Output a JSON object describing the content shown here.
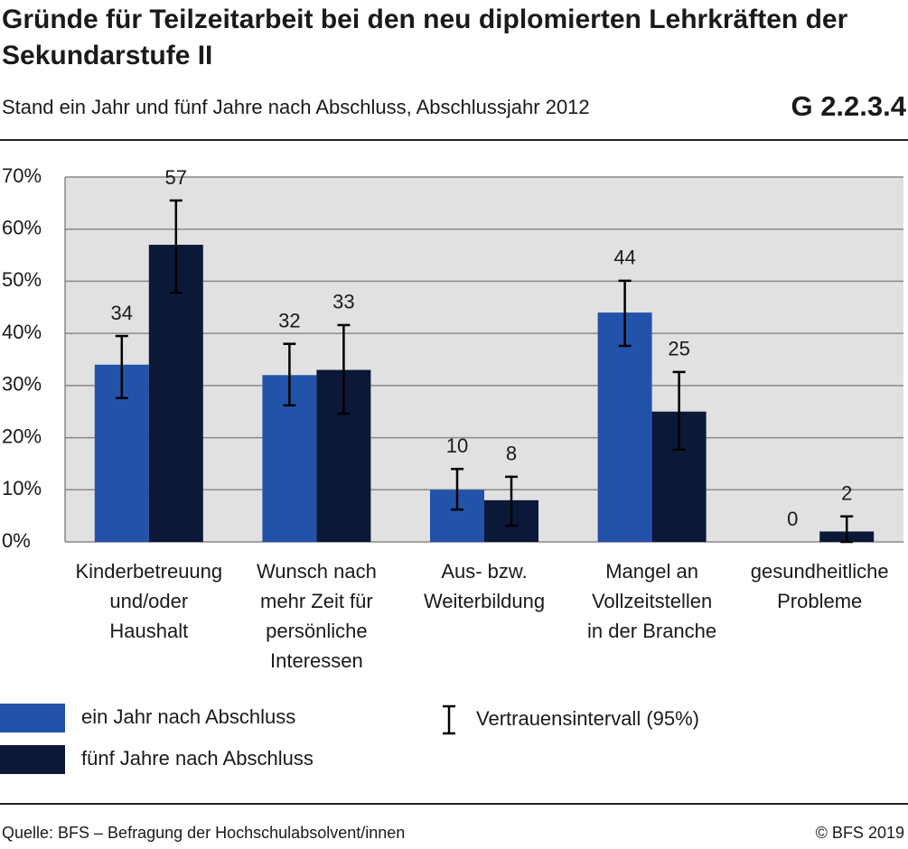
{
  "chart_data": {
    "type": "bar",
    "title": "Gründe für Teilzeitarbeit bei den neu diplomierten Lehrkräften der Sekundarstufe II",
    "subtitle": "Stand ein Jahr und fünf Jahre nach Abschluss, Abschlussjahr 2012",
    "code": "G 2.2.3.4",
    "categories": [
      "Kinderbetreuung\nund/oder\nHaushalt",
      "Wunsch nach\nmehr Zeit für\npersönliche\nInteressen",
      "Aus- bzw.\nWeiterbildung",
      "Mangel an\nVollzeitstellen\nin der Branche",
      "gesundheitliche\nProbleme"
    ],
    "series": [
      {
        "name": "ein Jahr nach Abschluss",
        "color": "#2352aa",
        "values": [
          34,
          32,
          10,
          44,
          0
        ],
        "ci": [
          [
            27.6,
            39.5
          ],
          [
            26.2,
            38.0
          ],
          [
            6.2,
            14.0
          ],
          [
            37.6,
            50.1
          ],
          null
        ]
      },
      {
        "name": "fünf Jahre nach Abschluss",
        "color": "#0b1838",
        "values": [
          57,
          33,
          8,
          25,
          2
        ],
        "ci": [
          [
            47.8,
            65.5
          ],
          [
            24.6,
            41.6
          ],
          [
            3.1,
            12.5
          ],
          [
            17.7,
            32.6
          ],
          [
            0,
            4.9
          ]
        ]
      }
    ],
    "ci_label": "Vertrauensintervall (95%)",
    "ylim": [
      0,
      70
    ],
    "yticks": [
      {
        "value": 0,
        "label": "0%"
      },
      {
        "value": 10,
        "label": "10%"
      },
      {
        "value": 20,
        "label": "20%"
      },
      {
        "value": 30,
        "label": "30%"
      },
      {
        "value": 40,
        "label": "40%"
      },
      {
        "value": 50,
        "label": "50%"
      },
      {
        "value": 60,
        "label": "60%"
      },
      {
        "value": 70,
        "label": "70%"
      }
    ],
    "grid": true,
    "source": "Quelle: BFS – Befragung der Hochschulabsolvent/innen",
    "copyright": "© BFS 2019"
  }
}
